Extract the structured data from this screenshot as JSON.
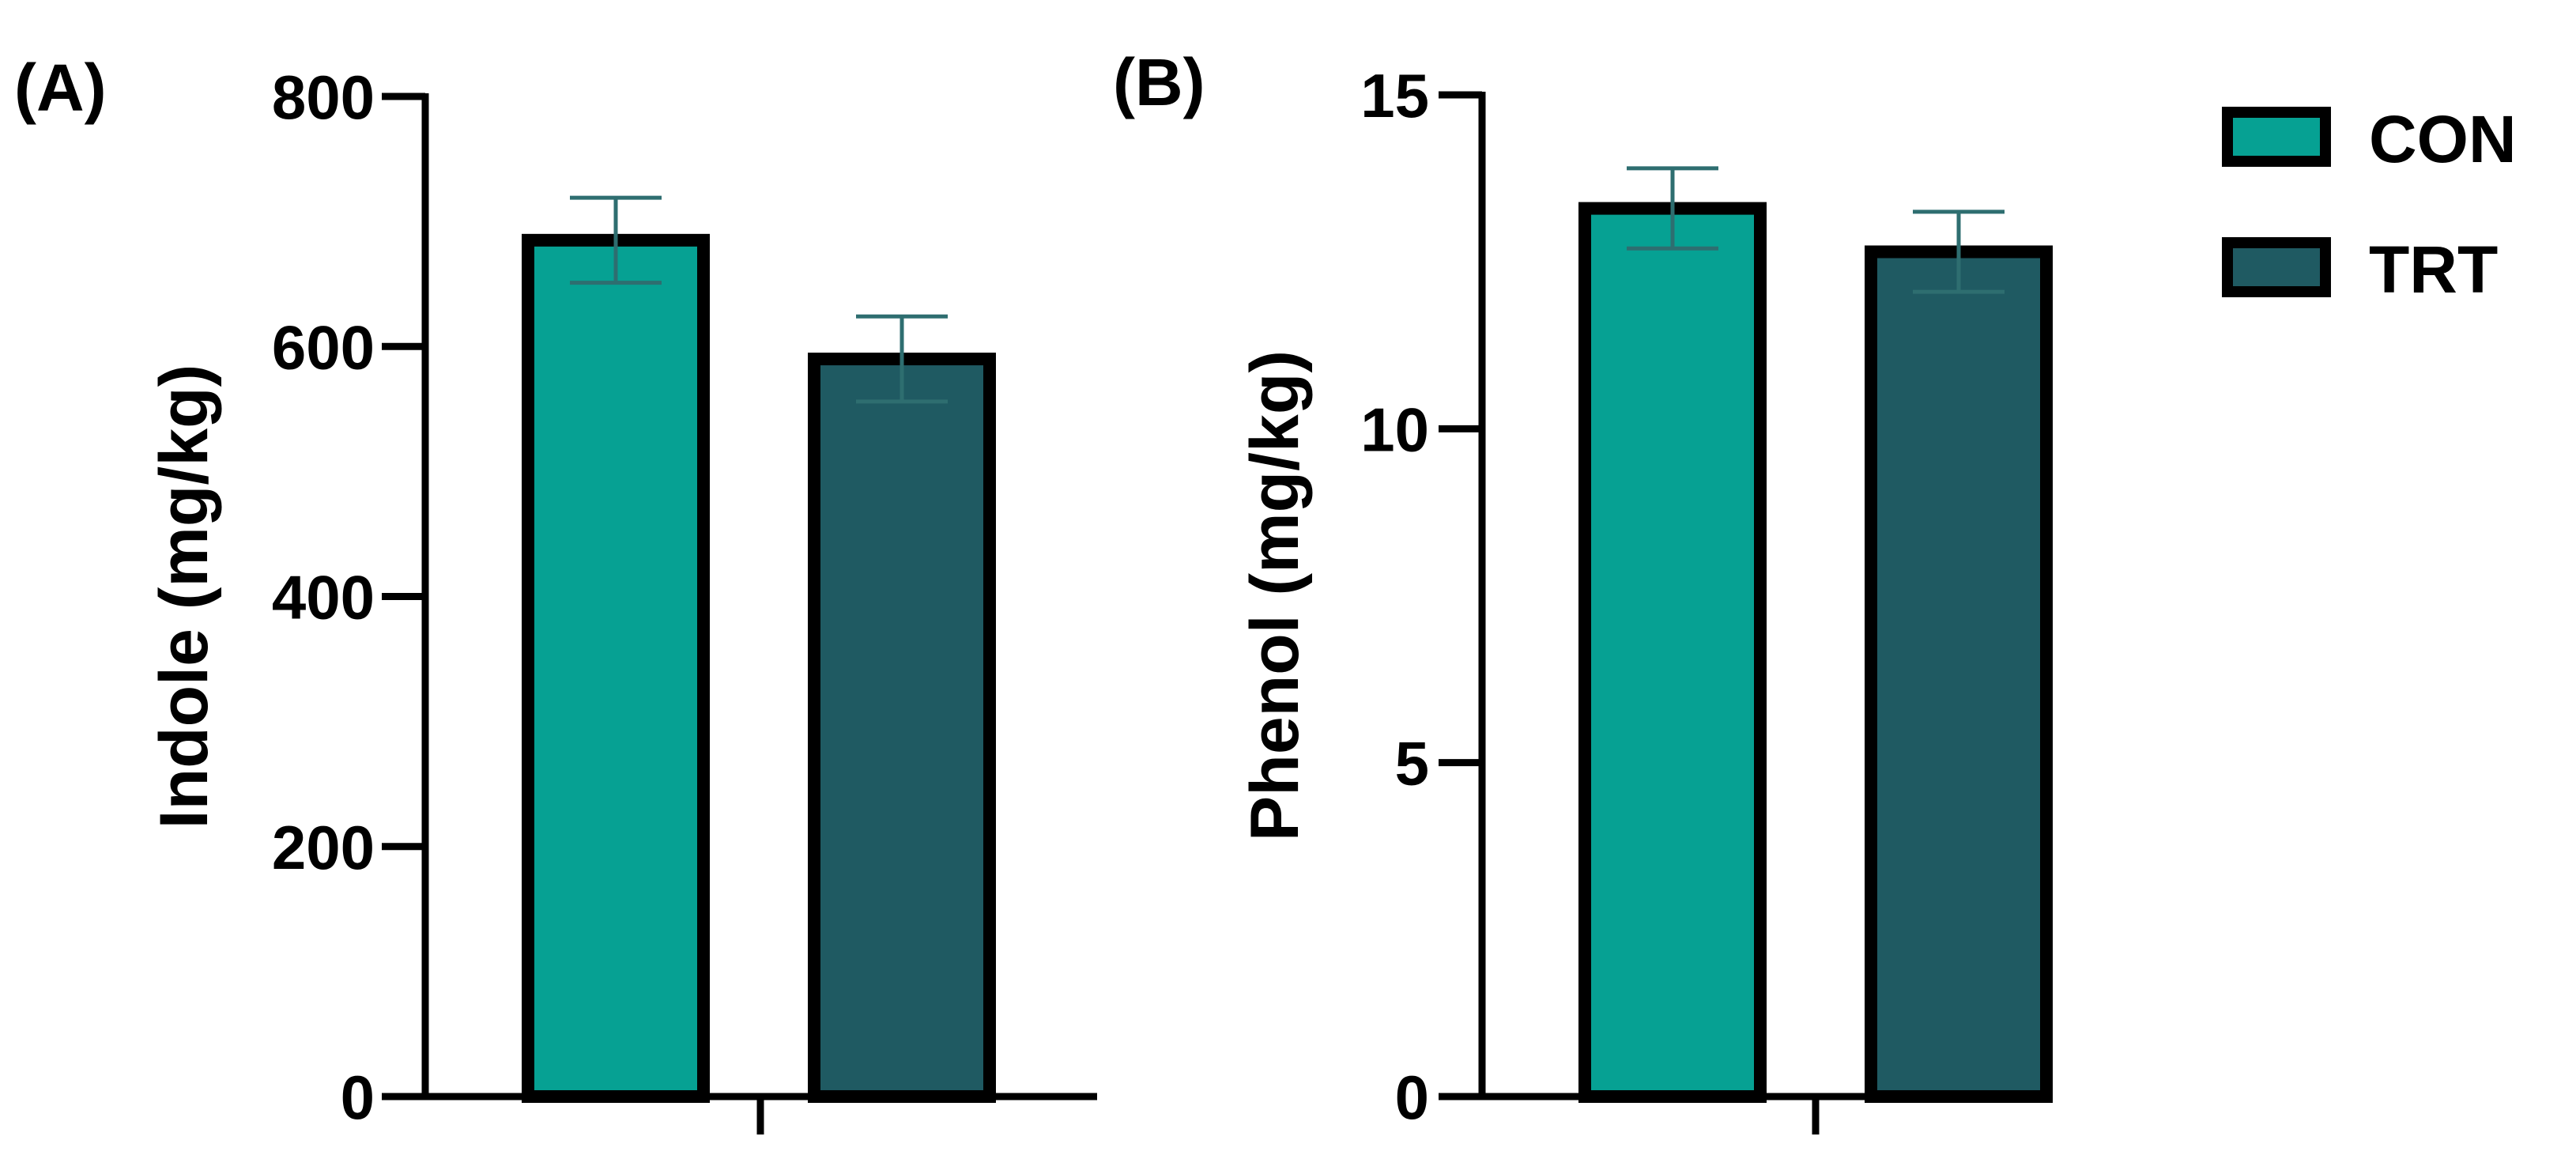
{
  "figure": {
    "legend": {
      "items": [
        {
          "label": "CON",
          "color": "#06A193"
        },
        {
          "label": "TRT",
          "color": "#1F5A62"
        }
      ]
    }
  },
  "chart_data": [
    {
      "type": "bar",
      "panel_label": "(A)",
      "title": "",
      "xlabel": "",
      "ylabel": "Indole (mg/kg)",
      "categories": [
        "CON",
        "TRT"
      ],
      "values": [
        685,
        590
      ],
      "errors": [
        34,
        34
      ],
      "ylim": [
        0,
        800
      ],
      "yticks": [
        0,
        200,
        400,
        600,
        800
      ],
      "ytick_labels": [
        "0",
        "200",
        "400",
        "600",
        "800"
      ],
      "colors": [
        "#06A193",
        "#1F5A62"
      ],
      "errorbar_color": "#2E6E70",
      "grid": false
    },
    {
      "type": "bar",
      "panel_label": "(B)",
      "title": "",
      "xlabel": "",
      "ylabel": "Phenol (mg/kg)",
      "categories": [
        "CON",
        "TRT"
      ],
      "values": [
        13.3,
        12.65
      ],
      "errors": [
        0.6,
        0.6
      ],
      "ylim": [
        0,
        15
      ],
      "yticks": [
        0,
        5,
        10,
        15
      ],
      "ytick_labels": [
        "0",
        "5",
        "10",
        "15"
      ],
      "colors": [
        "#06A193",
        "#1F5A62"
      ],
      "errorbar_color": "#2E6E70",
      "grid": false
    }
  ]
}
